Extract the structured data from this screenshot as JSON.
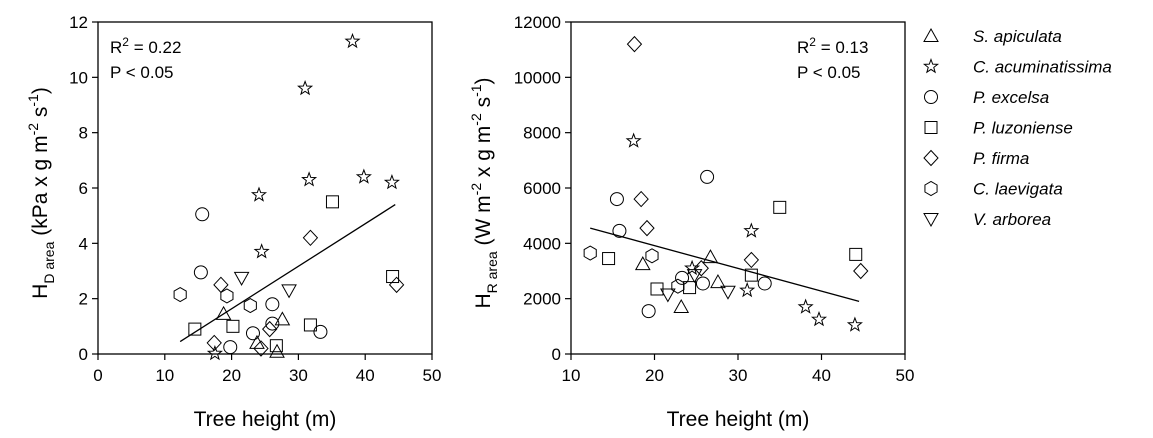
{
  "legend": [
    {
      "symbol": "triangle-up",
      "label": "S. apiculata"
    },
    {
      "symbol": "star",
      "label": "C. acuminatissima"
    },
    {
      "symbol": "circle",
      "label": "P. excelsa"
    },
    {
      "symbol": "square",
      "label": "P. luzoniense"
    },
    {
      "symbol": "diamond",
      "label": "P. firma"
    },
    {
      "symbol": "hexagon",
      "label": "C. laevigata"
    },
    {
      "symbol": "triangle-down",
      "label": "V. arborea"
    }
  ],
  "chart_data": [
    {
      "type": "scatter",
      "xlabel": "Tree height (m)",
      "ylabel_main": "H",
      "ylabel_sub": "D area",
      "ylabel_units": "(kPa x g m",
      "ylabel_exp1": "-2",
      "ylabel_mid": " s",
      "ylabel_exp2": "-1",
      "ylabel_close": ")",
      "annotation": {
        "r2_prefix": "R",
        "r2_sup": "2",
        "r2_value": " = 0.22",
        "p_text": "P < 0.05"
      },
      "xlim": [
        0,
        50
      ],
      "ylim": [
        0,
        12
      ],
      "xticks": [
        0,
        10,
        20,
        30,
        40,
        50
      ],
      "yticks": [
        0,
        2,
        4,
        6,
        8,
        10,
        12
      ],
      "regression": {
        "x": [
          12.3,
          44.5
        ],
        "y": [
          0.45,
          5.4
        ]
      },
      "series": [
        {
          "symbol": "triangle-up",
          "points": [
            [
              18.8,
              1.45
            ],
            [
              23.8,
              0.4
            ],
            [
              26.8,
              0.08
            ],
            [
              27.6,
              1.25
            ]
          ]
        },
        {
          "symbol": "star",
          "points": [
            [
              17.5,
              0.02
            ],
            [
              24.1,
              5.75
            ],
            [
              24.5,
              3.7
            ],
            [
              31,
              9.6
            ],
            [
              31.6,
              6.3
            ],
            [
              38.1,
              11.3
            ],
            [
              39.8,
              6.4
            ],
            [
              44,
              6.2
            ]
          ]
        },
        {
          "symbol": "circle",
          "points": [
            [
              15.4,
              2.95
            ],
            [
              15.6,
              5.05
            ],
            [
              19.8,
              0.25
            ],
            [
              23.2,
              0.75
            ],
            [
              26.1,
              1.1
            ],
            [
              26.1,
              1.8
            ],
            [
              33.3,
              0.8
            ]
          ]
        },
        {
          "symbol": "square",
          "points": [
            [
              14.5,
              0.9
            ],
            [
              20.2,
              1.0
            ],
            [
              26.7,
              0.3
            ],
            [
              31.8,
              1.05
            ],
            [
              35.1,
              5.5
            ],
            [
              44.1,
              2.8
            ]
          ]
        },
        {
          "symbol": "diamond",
          "points": [
            [
              17.4,
              0.4
            ],
            [
              18.4,
              2.5
            ],
            [
              24.4,
              0.2
            ],
            [
              25.7,
              0.9
            ],
            [
              31.8,
              4.2
            ],
            [
              44.7,
              2.5
            ]
          ]
        },
        {
          "symbol": "hexagon",
          "points": [
            [
              12.3,
              2.15
            ],
            [
              19.3,
              2.1
            ],
            [
              22.8,
              1.75
            ]
          ]
        },
        {
          "symbol": "triangle-down",
          "points": [
            [
              21.5,
              2.75
            ],
            [
              28.6,
              2.3
            ]
          ]
        }
      ]
    },
    {
      "type": "scatter",
      "xlabel": "Tree height (m)",
      "ylabel_main": "H",
      "ylabel_sub": "R area",
      "ylabel_units": "(W m",
      "ylabel_exp1": "-2",
      "ylabel_mid": " x g m",
      "ylabel_exp2": "-2",
      "ylabel_mid2": " s",
      "ylabel_exp3": "-1",
      "ylabel_close": ")",
      "annotation": {
        "r2_prefix": "R",
        "r2_sup": "2",
        "r2_value": " = 0.13",
        "p_text": "P < 0.05"
      },
      "xlim": [
        10,
        50
      ],
      "ylim": [
        0,
        12000
      ],
      "xticks": [
        10,
        20,
        30,
        40,
        50
      ],
      "yticks": [
        0,
        2000,
        4000,
        6000,
        8000,
        10000,
        12000
      ],
      "regression": {
        "x": [
          12.3,
          44.5
        ],
        "y": [
          4550,
          1900
        ]
      },
      "series": [
        {
          "symbol": "triangle-up",
          "points": [
            [
              18.6,
              3250
            ],
            [
              23.2,
              1700
            ],
            [
              26.7,
              3500
            ],
            [
              27.6,
              2600
            ]
          ]
        },
        {
          "symbol": "star",
          "points": [
            [
              17.5,
              7700
            ],
            [
              24.5,
              3100
            ],
            [
              31.1,
              2300
            ],
            [
              31.6,
              4450
            ],
            [
              38.1,
              1700
            ],
            [
              39.7,
              1250
            ],
            [
              44,
              1050
            ]
          ]
        },
        {
          "symbol": "circle",
          "points": [
            [
              15.5,
              5600
            ],
            [
              15.8,
              4450
            ],
            [
              19.3,
              1550
            ],
            [
              23.3,
              2750
            ],
            [
              25.8,
              2550
            ],
            [
              26.3,
              6400
            ],
            [
              33.2,
              2550
            ]
          ]
        },
        {
          "symbol": "square",
          "points": [
            [
              14.5,
              3450
            ],
            [
              20.3,
              2350
            ],
            [
              24.2,
              2400
            ],
            [
              31.6,
              2850
            ],
            [
              35,
              5300
            ],
            [
              44.1,
              3600
            ]
          ]
        },
        {
          "symbol": "diamond",
          "points": [
            [
              17.6,
              11200
            ],
            [
              18.4,
              5600
            ],
            [
              19.1,
              4550
            ],
            [
              25.6,
              3100
            ],
            [
              31.6,
              3400
            ],
            [
              44.7,
              3000
            ]
          ]
        },
        {
          "symbol": "hexagon",
          "points": [
            [
              12.3,
              3650
            ],
            [
              19.7,
              3550
            ],
            [
              22.8,
              2450
            ]
          ]
        },
        {
          "symbol": "triangle-down",
          "points": [
            [
              21.6,
              2150
            ],
            [
              24.8,
              2850
            ],
            [
              28.8,
              2250
            ]
          ]
        }
      ]
    }
  ]
}
